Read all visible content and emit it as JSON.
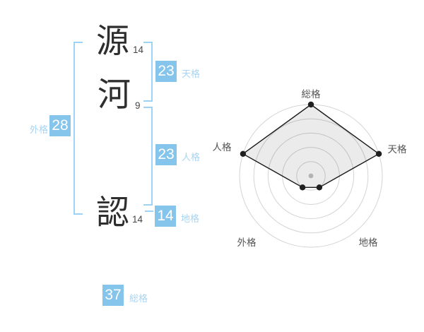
{
  "window": {
    "background": "#ffffff"
  },
  "name_panel": {
    "characters": [
      {
        "char": "源",
        "strokes": "14"
      },
      {
        "char": "河",
        "strokes": "9"
      },
      {
        "char": "認",
        "strokes": "14"
      }
    ],
    "scores": [
      {
        "id": "tenkaku",
        "value": "23",
        "label": "天格"
      },
      {
        "id": "jinkaku",
        "value": "23",
        "label": "人格"
      },
      {
        "id": "chikaku",
        "value": "14",
        "label": "地格"
      },
      {
        "id": "gaikaku",
        "value": "28",
        "label": "外格"
      },
      {
        "id": "soukaku",
        "value": "37",
        "label": "総格"
      }
    ],
    "colors": {
      "score_box": "#85c4eb",
      "score_label": "#a9d4f1",
      "bracket": "#9dd3f7",
      "character": "#2e2e2e",
      "stroke_count": "#474747"
    }
  },
  "chart_data": {
    "type": "radar",
    "axes": [
      "総格",
      "天格",
      "地格",
      "外格",
      "人格"
    ],
    "values": [
      5,
      5,
      1,
      1,
      5
    ],
    "max": 5,
    "rings": 5,
    "start_angle_deg": -90,
    "direction": "clockwise",
    "grid": "concentric-circles",
    "legend": "none",
    "colors": {
      "ring": "#d4d4d4",
      "polygon_fill": "rgba(0,0,0,0.08)",
      "polygon_stroke": "#1a1a1a",
      "vertex_dot": "#1f1f1f",
      "center_dot": "#c4c4c4",
      "axis_label": "#555555"
    }
  }
}
